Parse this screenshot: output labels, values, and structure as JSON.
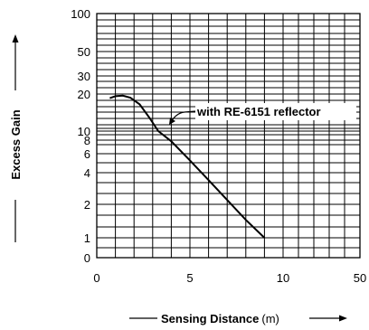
{
  "chart_data": {
    "type": "line",
    "title": "",
    "xlabel": "Sensing Distance",
    "xunit": "(m)",
    "ylabel": "Excess Gain",
    "x_ticks": [
      "0",
      "5",
      "10",
      "50"
    ],
    "y_ticks": [
      "0",
      "1",
      "2",
      "4",
      "6",
      "8",
      "10",
      "20",
      "30",
      "50",
      "100"
    ],
    "grid": true,
    "annotation": "with RE-6151 reflector",
    "series": [
      {
        "name": "with RE-6151 reflector",
        "x": [
          0.7,
          1.0,
          1.4,
          1.8,
          2.3,
          2.8,
          3.3,
          4.0,
          5.0,
          6.0,
          7.0,
          8.0,
          9.0
        ],
        "y": [
          18.5,
          19.2,
          19.4,
          18.7,
          16.5,
          13.0,
          10.0,
          7.8,
          5.2,
          3.4,
          2.2,
          1.45,
          1.0
        ]
      }
    ]
  }
}
